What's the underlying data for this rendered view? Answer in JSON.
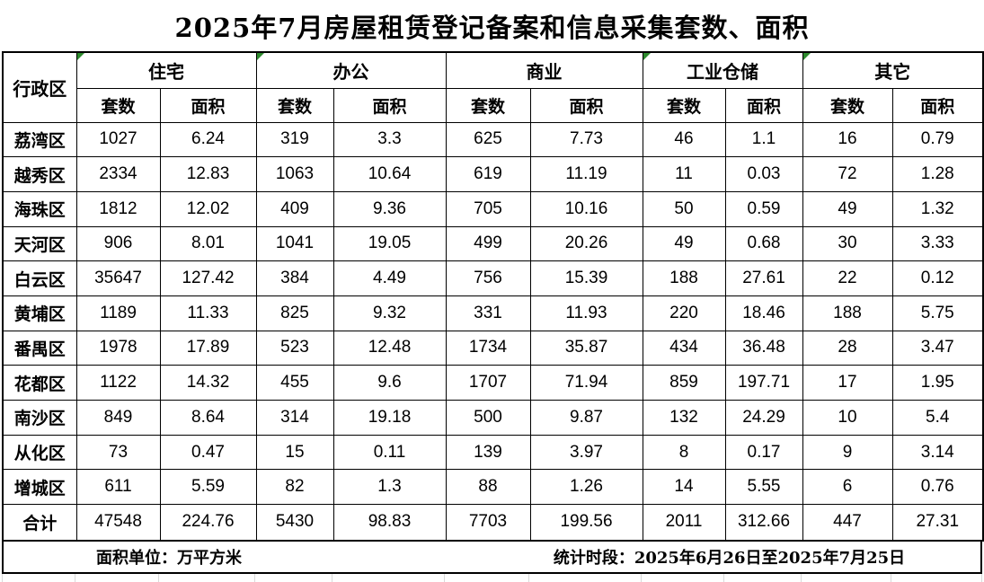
{
  "page": {
    "title": "2025年7月房屋租赁登记备案和信息采集套数、面积"
  },
  "table": {
    "row_header_label": "行政区",
    "groups": [
      {
        "label": "住宅",
        "error_indicator": true
      },
      {
        "label": "办公",
        "error_indicator": true
      },
      {
        "label": "商业",
        "error_indicator": false
      },
      {
        "label": "工业仓储",
        "error_indicator": true
      },
      {
        "label": "其它",
        "error_indicator": true
      }
    ],
    "sub_headers": [
      "套数",
      "面积"
    ],
    "rows": [
      {
        "district": "荔湾区",
        "values": [
          "1027",
          "6.24",
          "319",
          "3.3",
          "625",
          "7.73",
          "46",
          "1.1",
          "16",
          "0.79"
        ]
      },
      {
        "district": "越秀区",
        "values": [
          "2334",
          "12.83",
          "1063",
          "10.64",
          "619",
          "11.19",
          "11",
          "0.03",
          "72",
          "1.28"
        ]
      },
      {
        "district": "海珠区",
        "values": [
          "1812",
          "12.02",
          "409",
          "9.36",
          "705",
          "10.16",
          "50",
          "0.59",
          "49",
          "1.32"
        ]
      },
      {
        "district": "天河区",
        "values": [
          "906",
          "8.01",
          "1041",
          "19.05",
          "499",
          "20.26",
          "49",
          "0.68",
          "30",
          "3.33"
        ]
      },
      {
        "district": "白云区",
        "values": [
          "35647",
          "127.42",
          "384",
          "4.49",
          "756",
          "15.39",
          "188",
          "27.61",
          "22",
          "0.12"
        ]
      },
      {
        "district": "黄埔区",
        "values": [
          "1189",
          "11.33",
          "825",
          "9.32",
          "331",
          "11.93",
          "220",
          "18.46",
          "188",
          "5.75"
        ]
      },
      {
        "district": "番禺区",
        "values": [
          "1978",
          "17.89",
          "523",
          "12.48",
          "1734",
          "35.87",
          "434",
          "36.48",
          "28",
          "3.47"
        ]
      },
      {
        "district": "花都区",
        "values": [
          "1122",
          "14.32",
          "455",
          "9.6",
          "1707",
          "71.94",
          "859",
          "197.71",
          "17",
          "1.95"
        ]
      },
      {
        "district": "南沙区",
        "values": [
          "849",
          "8.64",
          "314",
          "19.18",
          "500",
          "9.87",
          "132",
          "24.29",
          "10",
          "5.4"
        ]
      },
      {
        "district": "从化区",
        "values": [
          "73",
          "0.47",
          "15",
          "0.11",
          "139",
          "3.97",
          "8",
          "0.17",
          "9",
          "3.14"
        ]
      },
      {
        "district": "增城区",
        "values": [
          "611",
          "5.59",
          "82",
          "1.3",
          "88",
          "1.26",
          "14",
          "5.55",
          "6",
          "0.76"
        ]
      }
    ],
    "total_row": {
      "district": "合计",
      "values": [
        "47548",
        "224.76",
        "5430",
        "98.83",
        "7703",
        "199.56",
        "2011",
        "312.66",
        "447",
        "27.31"
      ]
    }
  },
  "footer": {
    "area_unit": "面积单位：万平方米",
    "period": "统计时段：2025年6月26日至2025年7月25日"
  },
  "icons": {
    "error_indicator": "green-corner-triangle"
  },
  "colors": {
    "border": "#000000",
    "gridline": "#d9d9d9",
    "error_indicator_green": "#2e8b2e",
    "background": "#ffffff",
    "text": "#000000"
  }
}
